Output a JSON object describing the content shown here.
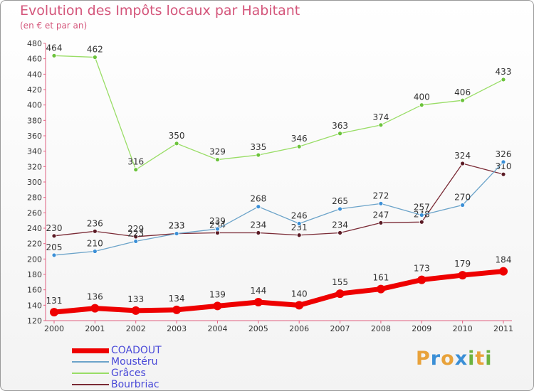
{
  "header": {
    "title": "Evolution des Impôts locaux par Habitant",
    "subtitle": "(en € et par an)"
  },
  "brand": {
    "text": "Proxiti",
    "letters": [
      "P",
      "r",
      "o",
      "x",
      "i",
      "t",
      "i"
    ],
    "colors": [
      "#e8a23a",
      "#3b8fd6",
      "#e8a23a",
      "#3b8fd6",
      "#6db33f",
      "#e8a23a",
      "#6db33f"
    ]
  },
  "chart_data": {
    "type": "line",
    "title": "Evolution des Impôts locaux par Habitant",
    "subtitle": "(en € et par an)",
    "xlabel": "",
    "ylabel": "",
    "x": [
      "2000",
      "2001",
      "2002",
      "2003",
      "2004",
      "2005",
      "2006",
      "2007",
      "2008",
      "2009",
      "2010",
      "2011"
    ],
    "ylim": [
      120,
      480
    ],
    "yticks": [
      120,
      140,
      160,
      180,
      200,
      220,
      240,
      260,
      280,
      300,
      320,
      340,
      360,
      380,
      400,
      420,
      440,
      460,
      480
    ],
    "grid": false,
    "legend_position": "bottom-left",
    "series": [
      {
        "name": "COADOUT",
        "color": "#ee0000",
        "values": [
          131,
          136,
          133,
          134,
          139,
          144,
          140,
          155,
          161,
          173,
          179,
          184
        ]
      },
      {
        "name": "Moustéru",
        "color": "#6ba3c9",
        "values": [
          205,
          210,
          223,
          233,
          239,
          268,
          246,
          265,
          272,
          257,
          270,
          326
        ]
      },
      {
        "name": "Grâces",
        "color": "#99dd66",
        "values": [
          464,
          462,
          316,
          350,
          329,
          335,
          346,
          363,
          374,
          400,
          406,
          433
        ]
      },
      {
        "name": "Bourbriac",
        "color": "#7a2a35",
        "values": [
          230,
          236,
          229,
          233,
          234,
          234,
          231,
          234,
          247,
          248,
          324,
          310
        ]
      }
    ]
  }
}
